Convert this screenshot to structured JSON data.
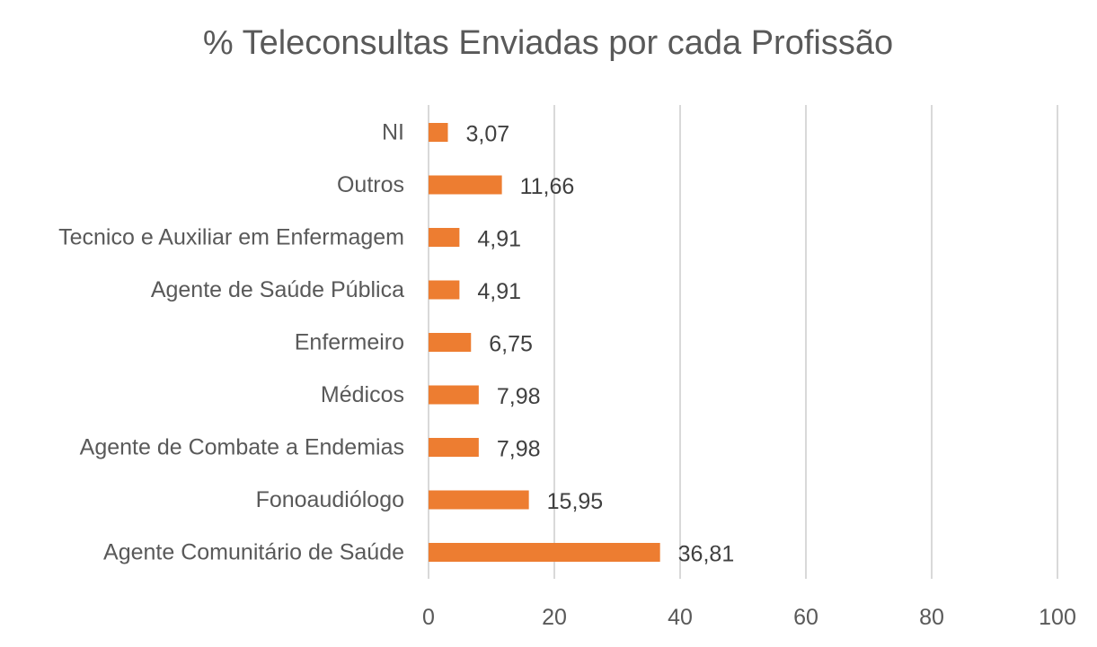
{
  "chart_data": {
    "type": "bar",
    "orientation": "horizontal",
    "title": "% Teleconsultas Enviadas por cada Profissão",
    "xlabel": "",
    "ylabel": "",
    "categories": [
      "NI",
      "Outros",
      "Tecnico e Auxiliar em Enfermagem",
      "Agente de Saúde Pública",
      "Enfermeiro",
      "Médicos",
      "Agente de Combate a Endemias",
      "Fonoaudiólogo",
      "Agente Comunitário de Saúde"
    ],
    "values": [
      3.07,
      11.66,
      4.91,
      4.91,
      6.75,
      7.98,
      7.98,
      15.95,
      36.81
    ],
    "data_labels": [
      "3,07",
      "11,66",
      "4,91",
      "4,91",
      "6,75",
      "7,98",
      "7,98",
      "15,95",
      "36,81"
    ],
    "xlim": [
      0,
      100
    ],
    "xticks": [
      "0",
      "20",
      "40",
      "60",
      "80",
      "100"
    ],
    "grid": true,
    "legend": "none",
    "bar_color": "#ED7D31"
  }
}
